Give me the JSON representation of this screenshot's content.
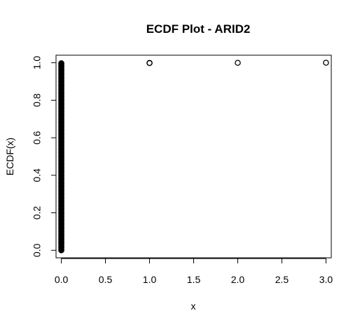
{
  "chart_data": {
    "type": "scatter",
    "title": "ECDF Plot - ARID2",
    "xlabel": "x",
    "ylabel": "ECDF(x)",
    "xlim": [
      -0.06,
      3.06
    ],
    "ylim": [
      -0.04,
      1.04
    ],
    "xticks": [
      0.0,
      0.5,
      1.0,
      1.5,
      2.0,
      2.5,
      3.0
    ],
    "xtick_labels": [
      "0.0",
      "0.5",
      "1.0",
      "1.5",
      "2.0",
      "2.5",
      "3.0"
    ],
    "yticks": [
      0.0,
      0.2,
      0.4,
      0.6,
      0.8,
      1.0
    ],
    "ytick_labels": [
      "0.0",
      "0.2",
      "0.4",
      "0.6",
      "0.8",
      "1.0"
    ],
    "grid": false,
    "legend": "none",
    "marker": "open-circle",
    "series": [
      {
        "x": [
          0,
          0,
          0,
          0,
          0,
          0,
          0,
          0,
          0,
          0,
          0,
          0,
          0,
          0,
          0,
          0,
          0,
          0,
          0,
          0,
          0,
          0,
          0,
          0,
          0,
          0,
          0,
          0,
          0,
          0,
          0,
          0,
          0,
          0,
          0,
          0,
          0,
          0,
          0,
          0,
          0,
          0,
          0,
          0,
          0,
          0,
          0,
          0,
          0,
          0,
          0,
          1,
          1,
          2,
          3
        ],
        "y": [
          0.0,
          0.02,
          0.04,
          0.06,
          0.08,
          0.1,
          0.12,
          0.14,
          0.16,
          0.18,
          0.2,
          0.22,
          0.24,
          0.26,
          0.28,
          0.3,
          0.32,
          0.34,
          0.36,
          0.38,
          0.4,
          0.42,
          0.44,
          0.46,
          0.48,
          0.5,
          0.52,
          0.54,
          0.56,
          0.58,
          0.6,
          0.62,
          0.64,
          0.66,
          0.68,
          0.7,
          0.72,
          0.74,
          0.76,
          0.78,
          0.8,
          0.82,
          0.84,
          0.86,
          0.88,
          0.9,
          0.92,
          0.94,
          0.96,
          0.98,
          0.997,
          0.998,
          0.999,
          0.9995,
          1.0
        ]
      }
    ]
  }
}
